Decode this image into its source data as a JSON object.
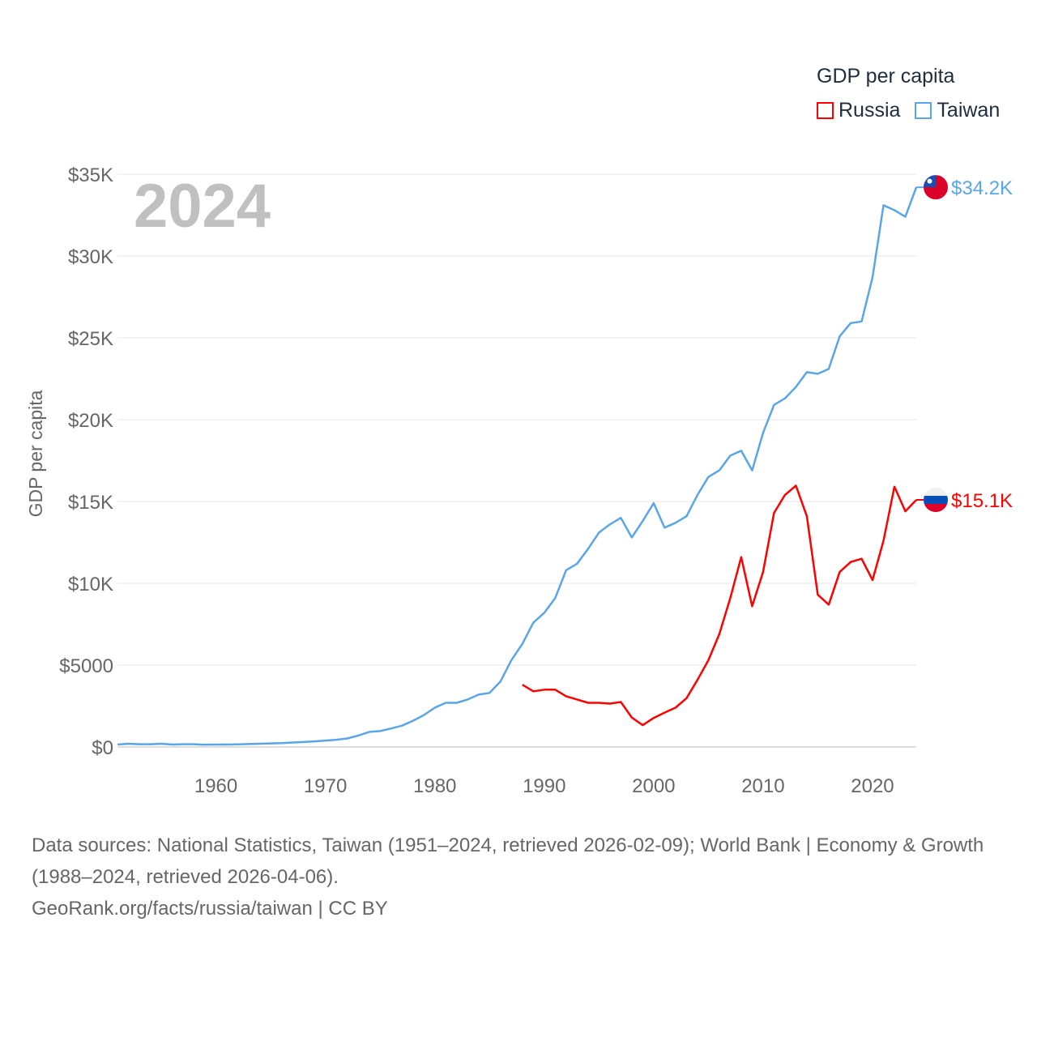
{
  "legend": {
    "title": "GDP per capita",
    "items": [
      {
        "label": "Russia",
        "color": "#ff0000"
      },
      {
        "label": "Taiwan",
        "color": "#5aa5e6"
      }
    ]
  },
  "footer": {
    "sources": "Data sources: National Statistics, Taiwan (1951–2024, retrieved 2026-02-09); World Bank | Economy & Growth (1988–2024, retrieved 2026-04-06).",
    "link": "GeoRank.org/facts/russia/taiwan | CC BY"
  },
  "chart_data": {
    "type": "line",
    "title": "GDP per capita",
    "year_label": "2024",
    "ylabel": "GDP per capita",
    "xlim": [
      1951,
      2024
    ],
    "ylim": [
      0,
      35000
    ],
    "grid": true,
    "legend_position": "top-right",
    "x_ticks": [
      1960,
      1970,
      1980,
      1990,
      2000,
      2010,
      2020
    ],
    "x_tick_labels": [
      "1960",
      "1970",
      "1980",
      "1990",
      "2000",
      "2010",
      "2020"
    ],
    "y_ticks": [
      0,
      5000,
      10000,
      15000,
      20000,
      25000,
      30000,
      35000
    ],
    "y_tick_labels": [
      "$0",
      "$5000",
      "$10K",
      "$15K",
      "$20K",
      "$25K",
      "$30K",
      "$35K"
    ],
    "series": [
      {
        "name": "Taiwan",
        "color": "#5aa5e6",
        "end_label": "$34.2K",
        "flag": "taiwan-flag",
        "start_year": 1951,
        "values": [
          150,
          200,
          170,
          170,
          200,
          150,
          170,
          170,
          140,
          150,
          150,
          160,
          180,
          200,
          220,
          240,
          270,
          300,
          340,
          390,
          440,
          520,
          700,
          920,
          970,
          1130,
          1300,
          1600,
          1950,
          2400,
          2700,
          2700,
          2900,
          3200,
          3300,
          4000,
          5300,
          6300,
          7600,
          8200,
          9100,
          10800,
          11200,
          12100,
          13100,
          13600,
          14000,
          12800,
          13800,
          14900,
          13400,
          13700,
          14100,
          15400,
          16500,
          16900,
          17800,
          18100,
          16900,
          19200,
          20900,
          21300,
          22000,
          22900,
          22800,
          23100,
          25100,
          25900,
          26000,
          28700,
          33100,
          32800,
          32400,
          34200
        ]
      },
      {
        "name": "Russia",
        "color": "#ff0000",
        "end_label": "$15.1K",
        "flag": "russia-flag",
        "start_year": 1988,
        "values": [
          3800,
          3400,
          3500,
          3500,
          3100,
          2900,
          2700,
          2700,
          2650,
          2750,
          1800,
          1330,
          1770,
          2100,
          2400,
          2980,
          4100,
          5300,
          6900,
          9100,
          11600,
          8600,
          10700,
          14300,
          15400,
          15970,
          14100,
          9300,
          8700,
          10700,
          11300,
          11500,
          10200,
          12600,
          15900,
          14400,
          15100
        ]
      }
    ]
  }
}
